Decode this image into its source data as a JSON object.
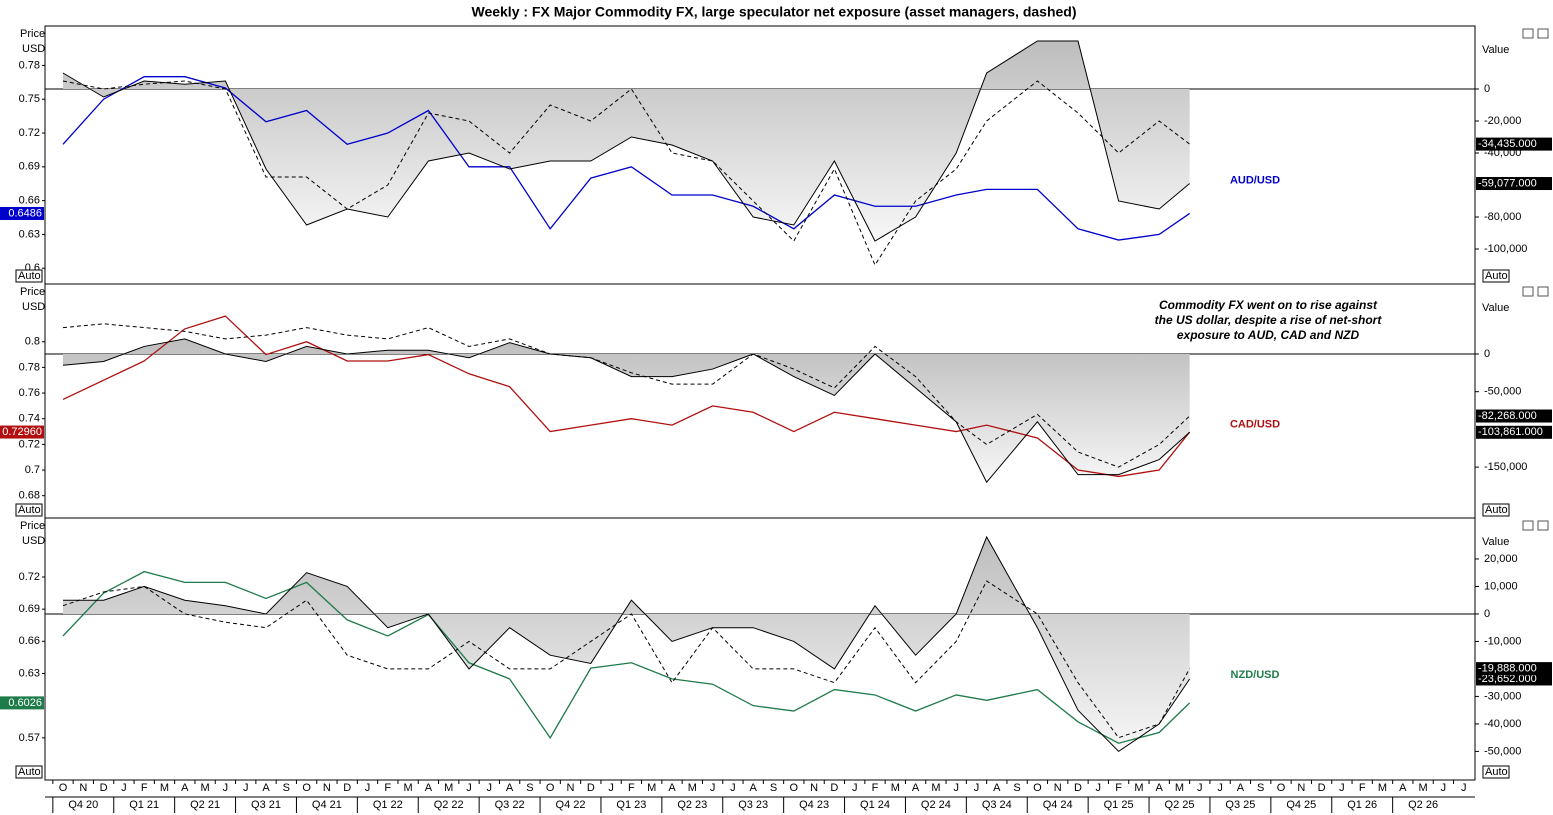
{
  "title": "Weekly : FX Major Commodity FX, large speculator net exposure (asset managers, dashed)",
  "time_axis": {
    "months": [
      "O",
      "N",
      "D",
      "J",
      "F",
      "M",
      "A",
      "M",
      "J",
      "J",
      "A",
      "S",
      "O",
      "N",
      "D",
      "J",
      "F",
      "M",
      "A",
      "M",
      "J",
      "J",
      "A",
      "S",
      "O",
      "N",
      "D",
      "J",
      "F",
      "M",
      "A",
      "M",
      "J",
      "J",
      "A",
      "S",
      "O",
      "N",
      "D",
      "J",
      "F",
      "M",
      "A",
      "M",
      "J",
      "J",
      "A",
      "S",
      "O",
      "N",
      "D",
      "J",
      "F",
      "M",
      "A",
      "M",
      "J",
      "J",
      "A",
      "S",
      "O",
      "N",
      "D",
      "J",
      "F",
      "M",
      "A",
      "M",
      "J",
      "J"
    ],
    "quarters": [
      "Q4 20",
      "Q1 21",
      "Q2 21",
      "Q3 21",
      "Q4 21",
      "Q1 22",
      "Q2 22",
      "Q3 22",
      "Q4 22",
      "Q1 23",
      "Q2 23",
      "Q3 23",
      "Q4 23",
      "Q1 24",
      "Q2 24",
      "Q3 24",
      "Q4 24",
      "Q1 25",
      "Q2 25",
      "Q3 25",
      "Q4 25",
      "Q1 26",
      "Q2 26"
    ]
  },
  "chart_data": [
    {
      "type": "line",
      "name": "AUD/USD",
      "ylabel": "Price",
      "yunit": "USD",
      "y2label": "Value",
      "scale_mode": "Auto",
      "x": [
        0,
        2,
        4,
        6,
        8,
        10,
        12,
        14,
        16,
        18,
        20,
        22,
        24,
        26,
        28,
        30,
        32,
        34,
        36,
        38,
        40,
        42,
        44,
        45.5,
        48,
        50,
        52,
        54,
        55.5
      ],
      "ylim": [
        0.586,
        0.815
      ],
      "yticks": [
        0.78,
        0.75,
        0.72,
        0.69,
        0.66,
        0.63,
        0.6
      ],
      "y2lim": [
        -121875,
        39375
      ],
      "y2ticks": [
        0,
        {
          "value": -20000,
          "label": "-20,000"
        },
        {
          "value": -40000,
          "label": "-40,000"
        },
        {
          "value": -80000,
          "label": "-80,000"
        },
        {
          "value": -100000,
          "label": "-100,000"
        }
      ],
      "series": [
        {
          "name": "AUD/USD",
          "color": "#0000cc",
          "axis": "y",
          "values": [
            0.71,
            0.75,
            0.77,
            0.77,
            0.76,
            0.73,
            0.74,
            0.71,
            0.72,
            0.74,
            0.69,
            0.69,
            0.635,
            0.68,
            0.69,
            0.665,
            0.665,
            0.655,
            0.635,
            0.665,
            0.655,
            0.655,
            0.665,
            0.67,
            0.67,
            0.635,
            0.625,
            0.63,
            0.6486
          ],
          "value_labels": [
            null,
            null,
            null,
            null,
            null,
            null,
            null,
            null,
            null,
            null,
            null,
            null,
            null,
            null,
            null,
            null,
            null,
            null,
            null,
            null,
            null,
            null,
            null,
            null,
            null,
            null,
            null,
            null,
            "0.6486"
          ]
        },
        {
          "color": "#000000",
          "axis": "y2",
          "dashed": false,
          "fill": true,
          "values": [
            10000,
            -5000,
            5000,
            3000,
            5000,
            -50000,
            -85000,
            -75000,
            -80000,
            -45000,
            -40000,
            -50000,
            -45000,
            -45000,
            -30000,
            -35000,
            -45000,
            -80000,
            -85000,
            -45000,
            -95000,
            -80000,
            -40000,
            10000,
            30000,
            30000,
            -70000,
            -75000,
            -59077
          ],
          "value_labels": [
            null,
            null,
            null,
            null,
            null,
            null,
            null,
            null,
            null,
            null,
            null,
            null,
            null,
            null,
            null,
            null,
            null,
            null,
            null,
            null,
            null,
            null,
            null,
            null,
            null,
            null,
            null,
            null,
            "-59,077.000"
          ]
        },
        {
          "color": "#000000",
          "axis": "y2",
          "dashed": true,
          "fill": false,
          "values": [
            5000,
            0,
            3000,
            5000,
            0,
            -55000,
            -55000,
            -75000,
            -60000,
            -15000,
            -20000,
            -40000,
            -10000,
            -20000,
            0,
            -40000,
            -45000,
            -70000,
            -95000,
            -50000,
            -110000,
            -70000,
            -50000,
            -20000,
            5000,
            -15000,
            -40000,
            -20000,
            -34435
          ],
          "value_labels": [
            null,
            null,
            null,
            null,
            null,
            null,
            null,
            null,
            null,
            null,
            null,
            null,
            null,
            null,
            null,
            null,
            null,
            null,
            null,
            null,
            null,
            null,
            null,
            null,
            null,
            null,
            null,
            null,
            "-34,435.000"
          ]
        }
      ]
    },
    {
      "type": "line",
      "name": "CAD/USD",
      "ylabel": "Price",
      "yunit": "USD",
      "y2label": "Value",
      "scale_mode": "Auto",
      "annotation": [
        "Commodity FX went on to rise against",
        "the US dollar, despite a rise of net-short",
        "exposure to AUD, CAD and NZD"
      ],
      "x": [
        0,
        2,
        4,
        6,
        8,
        10,
        12,
        14,
        16,
        18,
        20,
        22,
        24,
        26,
        28,
        30,
        32,
        34,
        36,
        38,
        40,
        42,
        44,
        45.5,
        48,
        50,
        52,
        54,
        55.5
      ],
      "ylim": [
        0.6626,
        0.845
      ],
      "yticks": [
        0.8,
        0.78,
        0.76,
        0.74,
        0.72,
        0.7,
        0.68
      ],
      "y2lim": [
        -217500,
        92800
      ],
      "y2ticks": [
        0,
        {
          "value": -50000,
          "label": "-50,000"
        },
        {
          "value": -150000,
          "label": "-150,000"
        }
      ],
      "series": [
        {
          "name": "CAD/USD",
          "color": "#b01010",
          "axis": "y",
          "values": [
            0.755,
            0.77,
            0.785,
            0.81,
            0.82,
            0.79,
            0.8,
            0.785,
            0.785,
            0.79,
            0.775,
            0.765,
            0.73,
            0.735,
            0.74,
            0.735,
            0.75,
            0.745,
            0.73,
            0.745,
            0.74,
            0.735,
            0.73,
            0.735,
            0.725,
            0.7,
            0.695,
            0.7,
            0.7296
          ],
          "value_labels": [
            null,
            null,
            null,
            null,
            null,
            null,
            null,
            null,
            null,
            null,
            null,
            null,
            null,
            null,
            null,
            null,
            null,
            null,
            null,
            null,
            null,
            null,
            null,
            null,
            null,
            null,
            null,
            null,
            "0.72960"
          ]
        },
        {
          "color": "#000000",
          "axis": "y2",
          "dashed": false,
          "fill": true,
          "values": [
            -15000,
            -10000,
            10000,
            20000,
            0,
            -10000,
            10000,
            0,
            5000,
            5000,
            -5000,
            15000,
            0,
            -5000,
            -30000,
            -30000,
            -20000,
            0,
            -30000,
            -55000,
            0,
            -45000,
            -90000,
            -170000,
            -90000,
            -160000,
            -160000,
            -140000,
            -103861
          ],
          "value_labels": [
            null,
            null,
            null,
            null,
            null,
            null,
            null,
            null,
            null,
            null,
            null,
            null,
            null,
            null,
            null,
            null,
            null,
            null,
            null,
            null,
            null,
            null,
            null,
            null,
            null,
            null,
            null,
            null,
            "-103,861.000"
          ]
        },
        {
          "color": "#000000",
          "axis": "y2",
          "dashed": true,
          "fill": false,
          "values": [
            35000,
            40000,
            35000,
            30000,
            20000,
            25000,
            35000,
            25000,
            20000,
            35000,
            10000,
            20000,
            0,
            -5000,
            -25000,
            -40000,
            -40000,
            0,
            -20000,
            -45000,
            10000,
            -30000,
            -90000,
            -120000,
            -80000,
            -130000,
            -150000,
            -120000,
            -82268
          ],
          "value_labels": [
            null,
            null,
            null,
            null,
            null,
            null,
            null,
            null,
            null,
            null,
            null,
            null,
            null,
            null,
            null,
            null,
            null,
            null,
            null,
            null,
            null,
            null,
            null,
            null,
            null,
            null,
            null,
            null,
            "-82,268.000"
          ]
        }
      ]
    },
    {
      "type": "line",
      "name": "NZD/USD",
      "ylabel": "Price",
      "yunit": "USD",
      "y2label": "Value",
      "scale_mode": "Auto",
      "x": [
        0,
        2,
        4,
        6,
        8,
        10,
        12,
        14,
        16,
        18,
        20,
        22,
        24,
        26,
        28,
        30,
        32,
        34,
        36,
        38,
        40,
        42,
        44,
        45.5,
        48,
        50,
        52,
        54,
        55.5
      ],
      "ylim": [
        0.5307,
        0.775
      ],
      "yticks": [
        0.72,
        0.69,
        0.66,
        0.63,
        0.57
      ],
      "y2lim": [
        -60400,
        34900
      ],
      "y2ticks": [
        {
          "value": 20000,
          "label": "20,000"
        },
        {
          "value": 10000,
          "label": "10,000"
        },
        0,
        {
          "value": -10000,
          "label": "-10,000"
        },
        {
          "value": -30000,
          "label": "-30,000"
        },
        {
          "value": -40000,
          "label": "-40,000"
        },
        {
          "value": -50000,
          "label": "-50,000"
        }
      ],
      "series": [
        {
          "name": "NZD/USD",
          "color": "#1e7b4a",
          "axis": "y",
          "values": [
            0.665,
            0.705,
            0.725,
            0.715,
            0.715,
            0.7,
            0.715,
            0.68,
            0.665,
            0.685,
            0.64,
            0.625,
            0.57,
            0.635,
            0.64,
            0.625,
            0.62,
            0.6,
            0.595,
            0.615,
            0.61,
            0.595,
            0.61,
            0.605,
            0.615,
            0.585,
            0.565,
            0.575,
            0.6026
          ],
          "value_labels": [
            null,
            null,
            null,
            null,
            null,
            null,
            null,
            null,
            null,
            null,
            null,
            null,
            null,
            null,
            null,
            null,
            null,
            null,
            null,
            null,
            null,
            null,
            null,
            null,
            null,
            null,
            null,
            null,
            "0.6026"
          ]
        },
        {
          "color": "#000000",
          "axis": "y2",
          "dashed": false,
          "fill": true,
          "values": [
            5000,
            5000,
            10000,
            5000,
            3000,
            0,
            15000,
            10000,
            -5000,
            0,
            -20000,
            -5000,
            -15000,
            -18000,
            5000,
            -10000,
            -5000,
            -5000,
            -10000,
            -20000,
            3000,
            -15000,
            0,
            28000,
            -5000,
            -35000,
            -50000,
            -40000,
            -23652
          ],
          "value_labels": [
            null,
            null,
            null,
            null,
            null,
            null,
            null,
            null,
            null,
            null,
            null,
            null,
            null,
            null,
            null,
            null,
            null,
            null,
            null,
            null,
            null,
            null,
            null,
            null,
            null,
            null,
            null,
            null,
            "-23,652.000"
          ]
        },
        {
          "color": "#000000",
          "axis": "y2",
          "dashed": true,
          "fill": false,
          "values": [
            3000,
            8000,
            10000,
            0,
            -3000,
            -5000,
            5000,
            -15000,
            -20000,
            -20000,
            -10000,
            -20000,
            -20000,
            -10000,
            0,
            -25000,
            -5000,
            -20000,
            -20000,
            -25000,
            -5000,
            -25000,
            -10000,
            12000,
            0,
            -25000,
            -45000,
            -40000,
            -19888
          ],
          "value_labels": [
            null,
            null,
            null,
            null,
            null,
            null,
            null,
            null,
            null,
            null,
            null,
            null,
            null,
            null,
            null,
            null,
            null,
            null,
            null,
            null,
            null,
            null,
            null,
            null,
            null,
            null,
            null,
            null,
            "-19,888.000"
          ]
        }
      ]
    }
  ]
}
